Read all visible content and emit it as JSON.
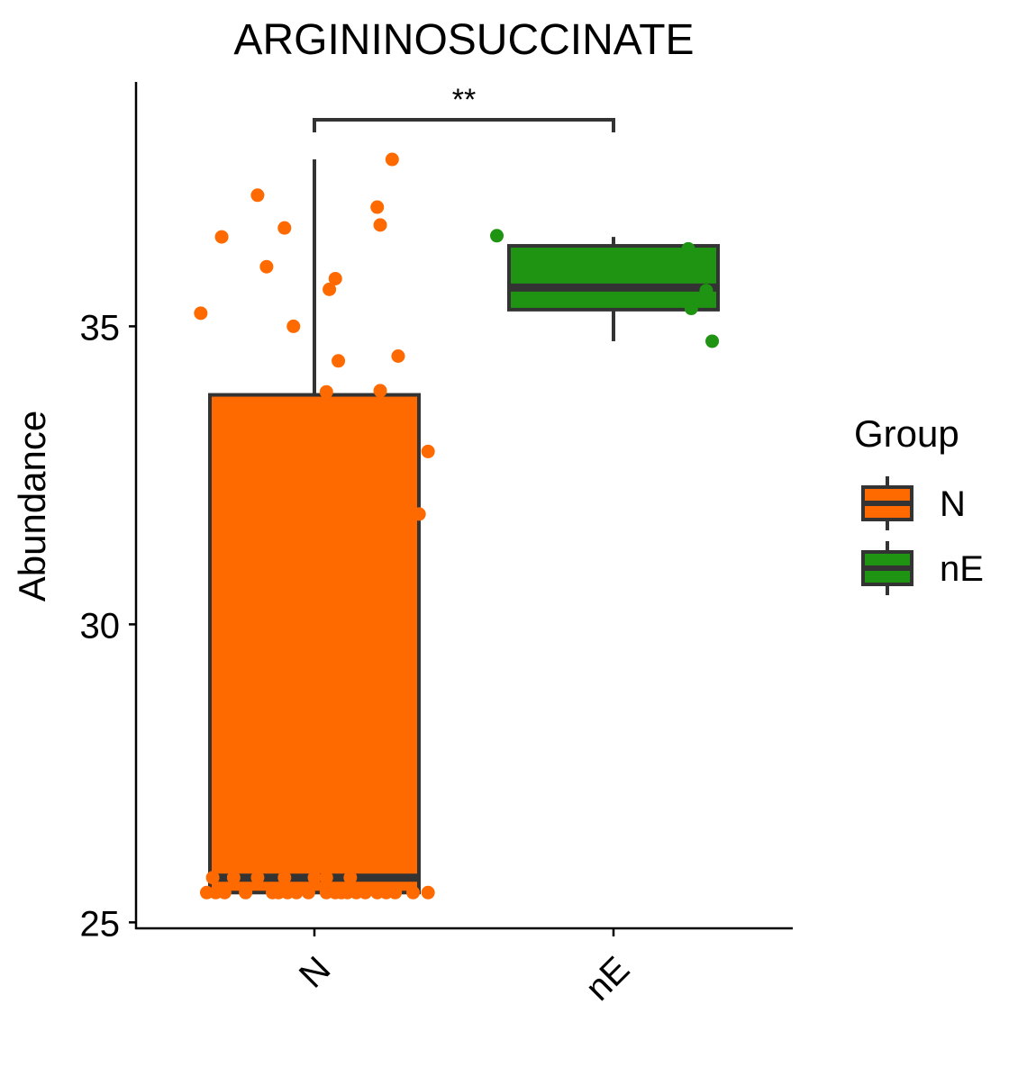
{
  "chart_data": {
    "type": "boxplot",
    "title": "ARGININOSUCCINATE",
    "xlabel": "",
    "ylabel": "Abundance",
    "ylim": [
      24.9,
      39.1
    ],
    "y_ticks": [
      25,
      30,
      35
    ],
    "categories": [
      "N",
      "nE"
    ],
    "grid": false,
    "legend": {
      "title": "Group",
      "placement": "right",
      "entries": [
        {
          "label": "N",
          "color": "#FF6A00"
        },
        {
          "label": "nE",
          "color": "#1F9412"
        }
      ]
    },
    "significance": {
      "between": [
        "N",
        "nE"
      ],
      "label": "**"
    },
    "boxes": [
      {
        "group": "N",
        "color": "#FF6A00",
        "whisker_low": 25.5,
        "q1": 25.5,
        "median": 25.75,
        "q3": 33.85,
        "whisker_high": 37.8
      },
      {
        "group": "nE",
        "color": "#1F9412",
        "whisker_low": 34.75,
        "q1": 35.28,
        "median": 35.65,
        "q3": 36.35,
        "whisker_high": 36.5
      }
    ],
    "points": [
      {
        "group": "N",
        "jitter": 0.26,
        "y": 37.8
      },
      {
        "group": "N",
        "jitter": -0.19,
        "y": 37.2
      },
      {
        "group": "N",
        "jitter": 0.21,
        "y": 37.0
      },
      {
        "group": "N",
        "jitter": 0.22,
        "y": 36.7
      },
      {
        "group": "N",
        "jitter": -0.1,
        "y": 36.65
      },
      {
        "group": "N",
        "jitter": -0.31,
        "y": 36.5
      },
      {
        "group": "N",
        "jitter": -0.16,
        "y": 36.0
      },
      {
        "group": "N",
        "jitter": 0.07,
        "y": 35.8
      },
      {
        "group": "N",
        "jitter": 0.05,
        "y": 35.62
      },
      {
        "group": "N",
        "jitter": -0.38,
        "y": 35.22
      },
      {
        "group": "N",
        "jitter": -0.07,
        "y": 35.0
      },
      {
        "group": "N",
        "jitter": 0.28,
        "y": 34.5
      },
      {
        "group": "N",
        "jitter": 0.08,
        "y": 34.42
      },
      {
        "group": "N",
        "jitter": 0.04,
        "y": 33.9
      },
      {
        "group": "N",
        "jitter": 0.22,
        "y": 33.92
      },
      {
        "group": "N",
        "jitter": 0.38,
        "y": 32.9
      },
      {
        "group": "N",
        "jitter": 0.35,
        "y": 31.85
      },
      {
        "group": "N",
        "jitter": -0.34,
        "y": 25.75
      },
      {
        "group": "N",
        "jitter": -0.27,
        "y": 25.75
      },
      {
        "group": "N",
        "jitter": -0.19,
        "y": 25.75
      },
      {
        "group": "N",
        "jitter": -0.1,
        "y": 25.75
      },
      {
        "group": "N",
        "jitter": 0.0,
        "y": 25.75
      },
      {
        "group": "N",
        "jitter": 0.04,
        "y": 25.75
      },
      {
        "group": "N",
        "jitter": 0.12,
        "y": 25.75
      },
      {
        "group": "N",
        "jitter": -0.36,
        "y": 25.5
      },
      {
        "group": "N",
        "jitter": -0.33,
        "y": 25.5
      },
      {
        "group": "N",
        "jitter": -0.3,
        "y": 25.5
      },
      {
        "group": "N",
        "jitter": -0.23,
        "y": 25.5
      },
      {
        "group": "N",
        "jitter": -0.14,
        "y": 25.5
      },
      {
        "group": "N",
        "jitter": -0.12,
        "y": 25.5
      },
      {
        "group": "N",
        "jitter": -0.09,
        "y": 25.5
      },
      {
        "group": "N",
        "jitter": -0.06,
        "y": 25.5
      },
      {
        "group": "N",
        "jitter": -0.02,
        "y": 25.5
      },
      {
        "group": "N",
        "jitter": 0.04,
        "y": 25.5
      },
      {
        "group": "N",
        "jitter": 0.07,
        "y": 25.5
      },
      {
        "group": "N",
        "jitter": 0.09,
        "y": 25.5
      },
      {
        "group": "N",
        "jitter": 0.11,
        "y": 25.5
      },
      {
        "group": "N",
        "jitter": 0.14,
        "y": 25.5
      },
      {
        "group": "N",
        "jitter": 0.17,
        "y": 25.5
      },
      {
        "group": "N",
        "jitter": 0.21,
        "y": 25.5
      },
      {
        "group": "N",
        "jitter": 0.24,
        "y": 25.5
      },
      {
        "group": "N",
        "jitter": 0.27,
        "y": 25.5
      },
      {
        "group": "N",
        "jitter": 0.33,
        "y": 25.5
      },
      {
        "group": "N",
        "jitter": 0.38,
        "y": 25.5
      },
      {
        "group": "nE",
        "jitter": -0.39,
        "y": 36.52
      },
      {
        "group": "nE",
        "jitter": 0.25,
        "y": 36.3
      },
      {
        "group": "nE",
        "jitter": 0.25,
        "y": 35.88
      },
      {
        "group": "nE",
        "jitter": 0.31,
        "y": 35.6
      },
      {
        "group": "nE",
        "jitter": 0.26,
        "y": 35.3
      },
      {
        "group": "nE",
        "jitter": 0.33,
        "y": 34.75
      }
    ]
  }
}
